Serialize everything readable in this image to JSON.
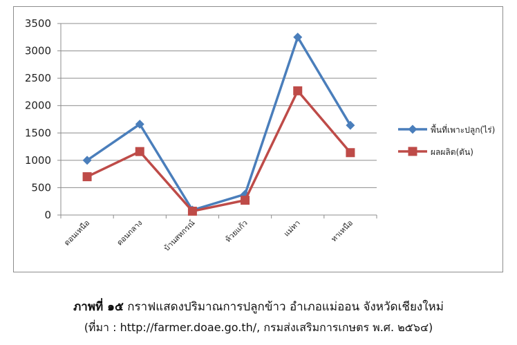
{
  "chart_data": {
    "type": "line",
    "categories": [
      "ดอนเหนือ",
      "ดอนกลาง",
      "บ้านสหกรณ์",
      "ห้วยแก้ว",
      "แม่ทา",
      "ทาเหนือ"
    ],
    "series": [
      {
        "name": "พื้นที่เพาะปลูก(ไร่)",
        "values": [
          1000,
          1660,
          90,
          380,
          3250,
          1640
        ],
        "color": "#4a7ebb",
        "marker": "diamond"
      },
      {
        "name": "ผลผลิต(ตัน)",
        "values": [
          700,
          1160,
          70,
          270,
          2270,
          1140
        ],
        "color": "#be4b48",
        "marker": "square"
      }
    ],
    "y_ticks": [
      "0",
      "500",
      "1000",
      "1500",
      "2000",
      "2500",
      "3000",
      "3500"
    ],
    "ylim": [
      0,
      3500
    ],
    "grid": true,
    "legend_position": "right"
  },
  "caption": {
    "label": "ภาพที่ ๑๕",
    "text": " กราฟแสดงปริมาณการปลูกข้าว อำเภอแม่ออน จังหวัดเชียงใหม่",
    "source": "(ที่มา : http://farmer.doae.go.th/, กรมส่งเสริมการเกษตร พ.ศ. ๒๕๖๔)"
  }
}
